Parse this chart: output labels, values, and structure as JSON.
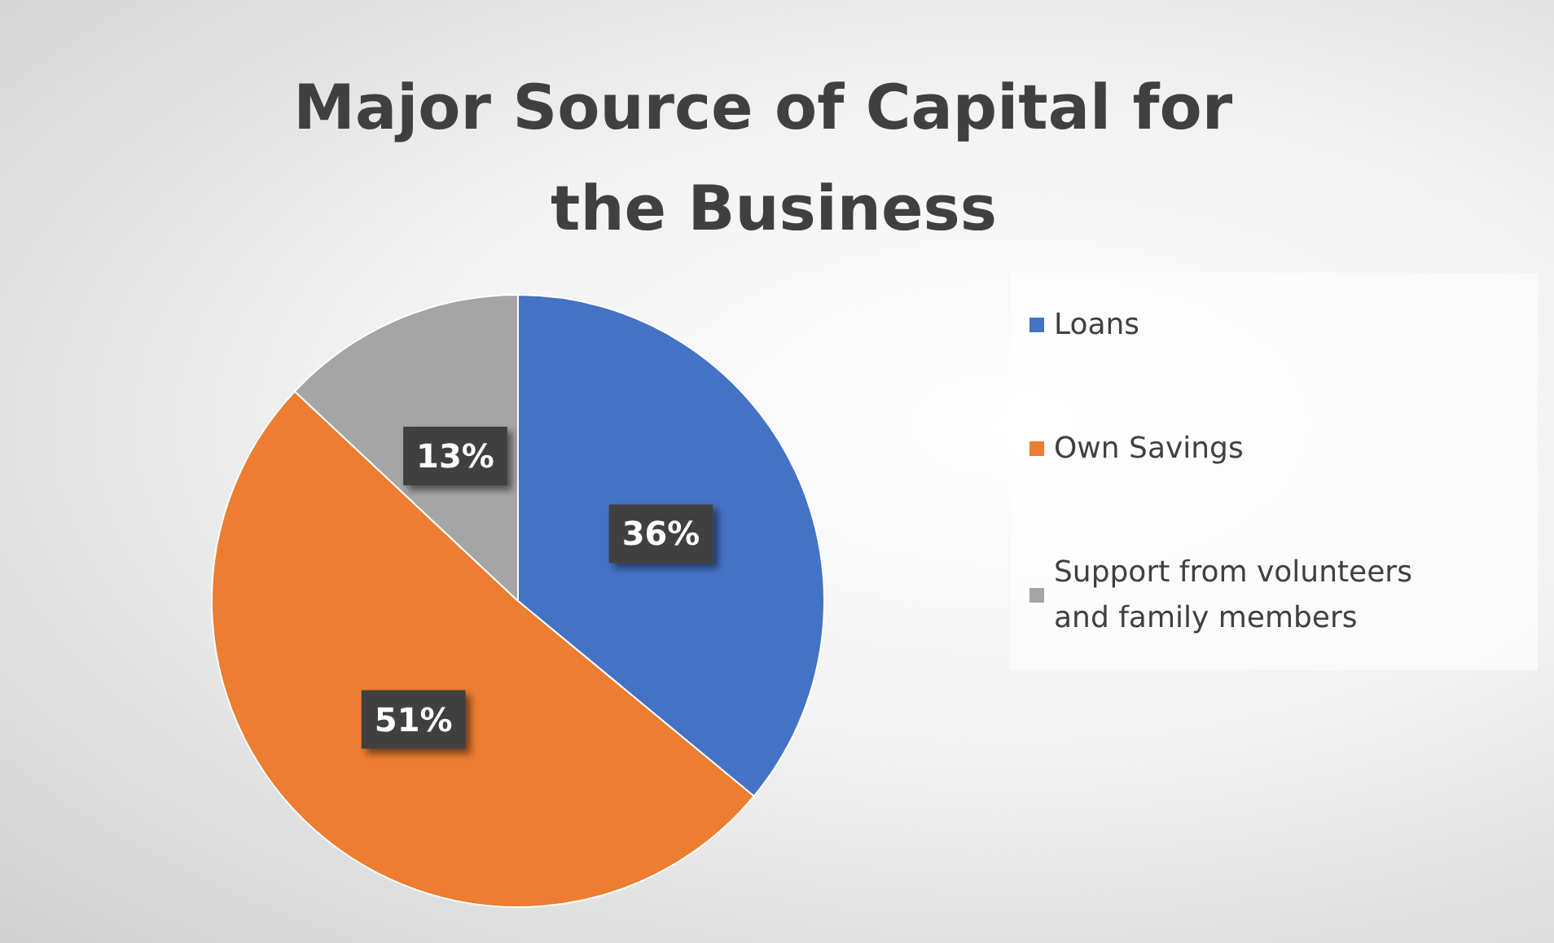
{
  "chart_data": {
    "type": "pie",
    "title": "Major Source of Capital for the Business",
    "categories": [
      "Loans",
      "Own Savings",
      "Support from volunteers and family members"
    ],
    "values": [
      36,
      51,
      13
    ],
    "colors": [
      "#4472c4",
      "#ed7d31",
      "#a5a5a5"
    ],
    "value_labels": [
      "36%",
      "51%",
      "13%"
    ],
    "legend": "right"
  }
}
